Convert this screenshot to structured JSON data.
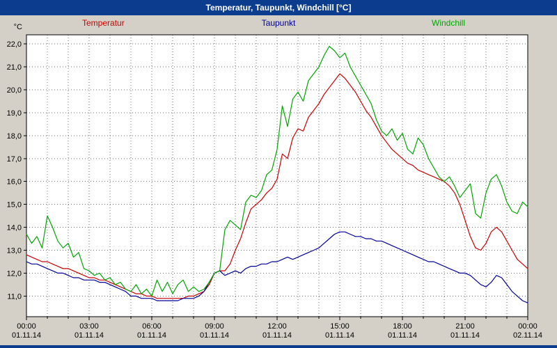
{
  "window": {
    "title": "Temperatur, Taupunkt, Windchill [°C]"
  },
  "colors": {
    "titlebar": "#0b3c8d",
    "background": "#d4d0c8",
    "plot_bg": "#ffffff",
    "grid": "#6b6b6b",
    "axis": "#000000",
    "temperatur": "#cc0000",
    "taupunkt": "#000099",
    "windchill": "#00a500"
  },
  "chart_data": {
    "type": "line",
    "title": "Temperatur, Taupunkt, Windchill [°C]",
    "xlabel": "",
    "ylabel": "°C",
    "xlim": [
      0,
      24
    ],
    "ylim": [
      10.1,
      22.4
    ],
    "x_start_hours": 0,
    "x_step_hours": 0.25,
    "grid": {
      "style": "dotted",
      "vertical_step_hours": 1,
      "horizontal_step_degrees": 1.0
    },
    "legend_position": "top",
    "yticks": {
      "values": [
        11,
        12,
        13,
        14,
        15,
        16,
        17,
        18,
        19,
        20,
        21,
        22
      ],
      "labels": [
        "11,0",
        "12,0",
        "13,0",
        "14,0",
        "15,0",
        "16,0",
        "17,0",
        "18,0",
        "19,0",
        "20,0",
        "21,0",
        "22,0"
      ]
    },
    "xticks": [
      {
        "hour": 0,
        "time": "00:00",
        "date": "01.11.14"
      },
      {
        "hour": 3,
        "time": "03:00",
        "date": "01.11.14"
      },
      {
        "hour": 6,
        "time": "06:00",
        "date": "01.11.14"
      },
      {
        "hour": 9,
        "time": "09:00",
        "date": "01.11.14"
      },
      {
        "hour": 12,
        "time": "12:00",
        "date": "01.11.14"
      },
      {
        "hour": 15,
        "time": "15:00",
        "date": "01.11.14"
      },
      {
        "hour": 18,
        "time": "18:00",
        "date": "01.11.14"
      },
      {
        "hour": 21,
        "time": "21:00",
        "date": "01.11.14"
      },
      {
        "hour": 24,
        "time": "00:00",
        "date": "02.11.14"
      }
    ],
    "series": [
      {
        "name": "Temperatur",
        "color": "#cc0000",
        "values": [
          12.8,
          12.7,
          12.6,
          12.5,
          12.5,
          12.4,
          12.3,
          12.2,
          12.2,
          12.1,
          12.0,
          11.9,
          11.8,
          11.8,
          11.7,
          11.7,
          11.6,
          11.5,
          11.4,
          11.3,
          11.2,
          11.1,
          11.1,
          11.0,
          11.0,
          10.9,
          10.9,
          10.9,
          10.9,
          10.9,
          10.9,
          11.0,
          11.0,
          11.1,
          11.2,
          11.5,
          12.0,
          12.1,
          12.1,
          12.4,
          13.0,
          13.5,
          14.2,
          14.8,
          15.0,
          15.2,
          15.5,
          15.7,
          16.1,
          17.2,
          17.0,
          17.9,
          18.3,
          18.2,
          18.8,
          19.1,
          19.4,
          19.8,
          20.1,
          20.4,
          20.7,
          20.5,
          20.2,
          19.9,
          19.5,
          19.1,
          18.8,
          18.4,
          18.0,
          17.7,
          17.4,
          17.2,
          17.0,
          16.8,
          16.7,
          16.5,
          16.4,
          16.3,
          16.2,
          16.1,
          16.0,
          15.8,
          15.5,
          15.0,
          14.3,
          13.6,
          13.1,
          13.0,
          13.3,
          13.8,
          14.0,
          13.8,
          13.4,
          13.0,
          12.6,
          12.4,
          12.2
        ]
      },
      {
        "name": "Taupunkt",
        "color": "#000099",
        "values": [
          12.5,
          12.4,
          12.4,
          12.3,
          12.2,
          12.1,
          12.0,
          12.0,
          11.9,
          11.8,
          11.8,
          11.7,
          11.7,
          11.7,
          11.6,
          11.6,
          11.5,
          11.4,
          11.3,
          11.2,
          11.0,
          11.0,
          10.9,
          10.9,
          10.9,
          10.8,
          10.8,
          10.8,
          10.8,
          10.8,
          10.9,
          10.9,
          10.9,
          11.0,
          11.2,
          11.6,
          12.0,
          12.1,
          11.9,
          12.0,
          12.1,
          12.0,
          12.2,
          12.3,
          12.3,
          12.4,
          12.4,
          12.5,
          12.5,
          12.6,
          12.7,
          12.6,
          12.7,
          12.8,
          12.9,
          13.0,
          13.1,
          13.3,
          13.5,
          13.7,
          13.8,
          13.8,
          13.7,
          13.6,
          13.6,
          13.5,
          13.5,
          13.4,
          13.4,
          13.3,
          13.2,
          13.1,
          13.0,
          12.9,
          12.8,
          12.7,
          12.6,
          12.5,
          12.5,
          12.4,
          12.3,
          12.2,
          12.1,
          12.0,
          12.0,
          11.9,
          11.7,
          11.5,
          11.4,
          11.6,
          11.9,
          11.8,
          11.5,
          11.2,
          11.0,
          10.8,
          10.7
        ]
      },
      {
        "name": "Windchill",
        "color": "#00a500",
        "values": [
          13.7,
          13.3,
          13.6,
          13.1,
          14.5,
          14.0,
          13.4,
          13.1,
          13.3,
          12.7,
          12.9,
          12.2,
          12.1,
          11.9,
          12.0,
          11.7,
          11.8,
          11.5,
          11.6,
          11.3,
          11.2,
          11.5,
          11.1,
          11.3,
          11.0,
          11.7,
          11.2,
          11.6,
          11.1,
          11.5,
          11.7,
          11.2,
          11.4,
          11.2,
          11.3,
          11.6,
          12.0,
          12.1,
          13.9,
          14.3,
          14.1,
          13.9,
          15.1,
          15.4,
          15.3,
          15.6,
          16.3,
          16.5,
          17.4,
          19.3,
          18.4,
          19.6,
          19.9,
          19.5,
          20.4,
          20.7,
          21.0,
          21.5,
          21.9,
          21.7,
          21.4,
          21.6,
          21.0,
          20.6,
          20.2,
          19.8,
          19.4,
          18.7,
          18.2,
          18.0,
          18.3,
          17.8,
          18.1,
          17.4,
          17.2,
          17.9,
          17.6,
          17.0,
          16.6,
          16.2,
          16.0,
          16.2,
          15.8,
          15.3,
          15.6,
          15.9,
          14.6,
          14.4,
          15.5,
          16.1,
          16.3,
          15.8,
          15.1,
          14.7,
          14.6,
          15.1,
          14.9
        ]
      }
    ]
  }
}
